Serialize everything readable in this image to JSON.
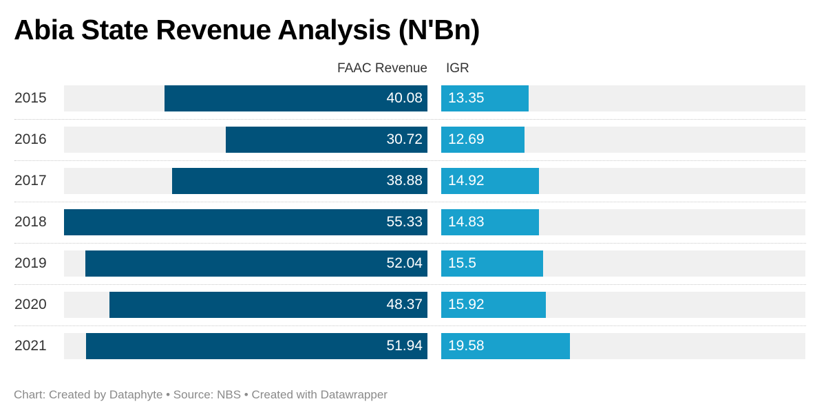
{
  "chart_data": {
    "type": "bar",
    "orientation": "horizontal",
    "title": "Abia State Revenue Analysis (N'Bn)",
    "xlabel": "",
    "ylabel": "",
    "categories": [
      "2015",
      "2016",
      "2017",
      "2018",
      "2019",
      "2020",
      "2021"
    ],
    "series": [
      {
        "name": "FAAC Revenue",
        "color": "#01527a",
        "values": [
          40.08,
          30.72,
          38.88,
          55.33,
          52.04,
          48.37,
          51.94
        ],
        "labels": [
          "40.08",
          "30.72",
          "38.88",
          "55.33",
          "52.04",
          "48.37",
          "51.94"
        ]
      },
      {
        "name": "IGR",
        "color": "#19a1cd",
        "values": [
          13.35,
          12.69,
          14.92,
          14.83,
          15.5,
          15.92,
          19.58
        ],
        "labels": [
          "13.35",
          "12.69",
          "14.92",
          "14.83",
          "15.5",
          "15.92",
          "19.58"
        ]
      }
    ],
    "xlim": [
      0,
      55.33
    ],
    "grid": false,
    "legend": "column-headers"
  },
  "footer": "Chart: Created by Dataphyte • Source: NBS • Created with Datawrapper"
}
